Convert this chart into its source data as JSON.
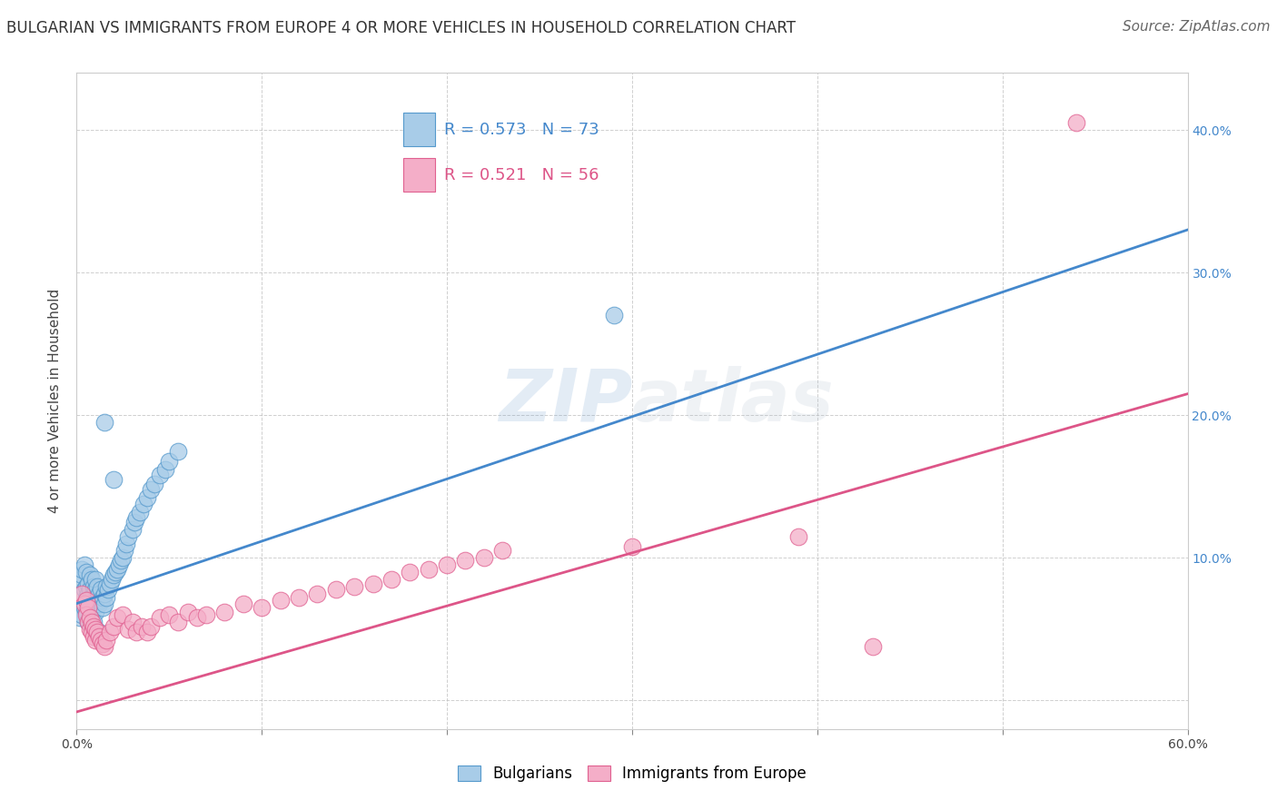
{
  "title": "BULGARIAN VS IMMIGRANTS FROM EUROPE 4 OR MORE VEHICLES IN HOUSEHOLD CORRELATION CHART",
  "source": "Source: ZipAtlas.com",
  "ylabel": "4 or more Vehicles in Household",
  "xlim": [
    0.0,
    0.6
  ],
  "ylim": [
    -0.02,
    0.44
  ],
  "x_ticks": [
    0.0,
    0.1,
    0.2,
    0.3,
    0.4,
    0.5,
    0.6
  ],
  "y_ticks": [
    0.0,
    0.1,
    0.2,
    0.3,
    0.4
  ],
  "x_tick_labels": [
    "0.0%",
    "",
    "",
    "",
    "",
    "",
    "60.0%"
  ],
  "y_tick_labels_right": [
    "",
    "10.0%",
    "20.0%",
    "30.0%",
    "40.0%"
  ],
  "blue_R": "R = 0.573",
  "blue_N": "N = 73",
  "pink_R": "R = 0.521",
  "pink_N": "N = 56",
  "blue_color": "#a8cce8",
  "pink_color": "#f4aec8",
  "blue_edge_color": "#5599cc",
  "pink_edge_color": "#e06090",
  "blue_line_color": "#4488cc",
  "pink_line_color": "#dd5588",
  "watermark": "ZIPatlas",
  "legend_bulgarians": "Bulgarians",
  "legend_immigrants": "Immigrants from Europe",
  "blue_scatter_x": [
    0.002,
    0.003,
    0.003,
    0.004,
    0.004,
    0.005,
    0.005,
    0.005,
    0.006,
    0.006,
    0.006,
    0.007,
    0.007,
    0.007,
    0.008,
    0.008,
    0.008,
    0.009,
    0.009,
    0.009,
    0.01,
    0.01,
    0.01,
    0.01,
    0.011,
    0.011,
    0.012,
    0.012,
    0.013,
    0.013,
    0.014,
    0.014,
    0.015,
    0.015,
    0.016,
    0.016,
    0.017,
    0.018,
    0.019,
    0.02,
    0.021,
    0.022,
    0.023,
    0.024,
    0.025,
    0.026,
    0.027,
    0.028,
    0.03,
    0.031,
    0.032,
    0.034,
    0.036,
    0.038,
    0.04,
    0.042,
    0.045,
    0.048,
    0.05,
    0.055,
    0.002,
    0.003,
    0.004,
    0.005,
    0.006,
    0.007,
    0.008,
    0.009,
    0.01,
    0.012,
    0.015,
    0.02,
    0.29
  ],
  "blue_scatter_y": [
    0.085,
    0.088,
    0.092,
    0.078,
    0.095,
    0.072,
    0.08,
    0.09,
    0.068,
    0.075,
    0.082,
    0.07,
    0.078,
    0.088,
    0.065,
    0.072,
    0.085,
    0.068,
    0.075,
    0.08,
    0.062,
    0.07,
    0.078,
    0.085,
    0.072,
    0.08,
    0.068,
    0.075,
    0.07,
    0.078,
    0.065,
    0.072,
    0.068,
    0.075,
    0.072,
    0.08,
    0.078,
    0.082,
    0.085,
    0.088,
    0.09,
    0.092,
    0.095,
    0.098,
    0.1,
    0.105,
    0.11,
    0.115,
    0.12,
    0.125,
    0.128,
    0.132,
    0.138,
    0.142,
    0.148,
    0.152,
    0.158,
    0.162,
    0.168,
    0.175,
    0.058,
    0.06,
    0.065,
    0.062,
    0.055,
    0.058,
    0.052,
    0.055,
    0.05,
    0.048,
    0.195,
    0.155,
    0.27
  ],
  "pink_scatter_x": [
    0.003,
    0.004,
    0.005,
    0.005,
    0.006,
    0.006,
    0.007,
    0.007,
    0.008,
    0.008,
    0.009,
    0.009,
    0.01,
    0.01,
    0.011,
    0.012,
    0.013,
    0.014,
    0.015,
    0.016,
    0.018,
    0.02,
    0.022,
    0.025,
    0.028,
    0.03,
    0.032,
    0.035,
    0.038,
    0.04,
    0.045,
    0.05,
    0.055,
    0.06,
    0.065,
    0.07,
    0.08,
    0.09,
    0.1,
    0.11,
    0.12,
    0.13,
    0.14,
    0.15,
    0.16,
    0.17,
    0.18,
    0.19,
    0.2,
    0.21,
    0.22,
    0.23,
    0.3,
    0.39,
    0.43,
    0.54
  ],
  "pink_scatter_y": [
    0.075,
    0.068,
    0.07,
    0.06,
    0.055,
    0.065,
    0.05,
    0.058,
    0.048,
    0.055,
    0.045,
    0.052,
    0.042,
    0.05,
    0.048,
    0.045,
    0.042,
    0.04,
    0.038,
    0.042,
    0.048,
    0.052,
    0.058,
    0.06,
    0.05,
    0.055,
    0.048,
    0.052,
    0.048,
    0.052,
    0.058,
    0.06,
    0.055,
    0.062,
    0.058,
    0.06,
    0.062,
    0.068,
    0.065,
    0.07,
    0.072,
    0.075,
    0.078,
    0.08,
    0.082,
    0.085,
    0.09,
    0.092,
    0.095,
    0.098,
    0.1,
    0.105,
    0.108,
    0.115,
    0.038,
    0.405
  ],
  "blue_trend_x": [
    0.0,
    0.6
  ],
  "blue_trend_y": [
    0.068,
    0.33
  ],
  "pink_trend_x": [
    0.0,
    0.6
  ],
  "pink_trend_y": [
    -0.008,
    0.215
  ],
  "title_fontsize": 12,
  "source_fontsize": 11,
  "axis_fontsize": 10,
  "label_fontsize": 11,
  "background_color": "#ffffff",
  "grid_color": "#bbbbbb"
}
